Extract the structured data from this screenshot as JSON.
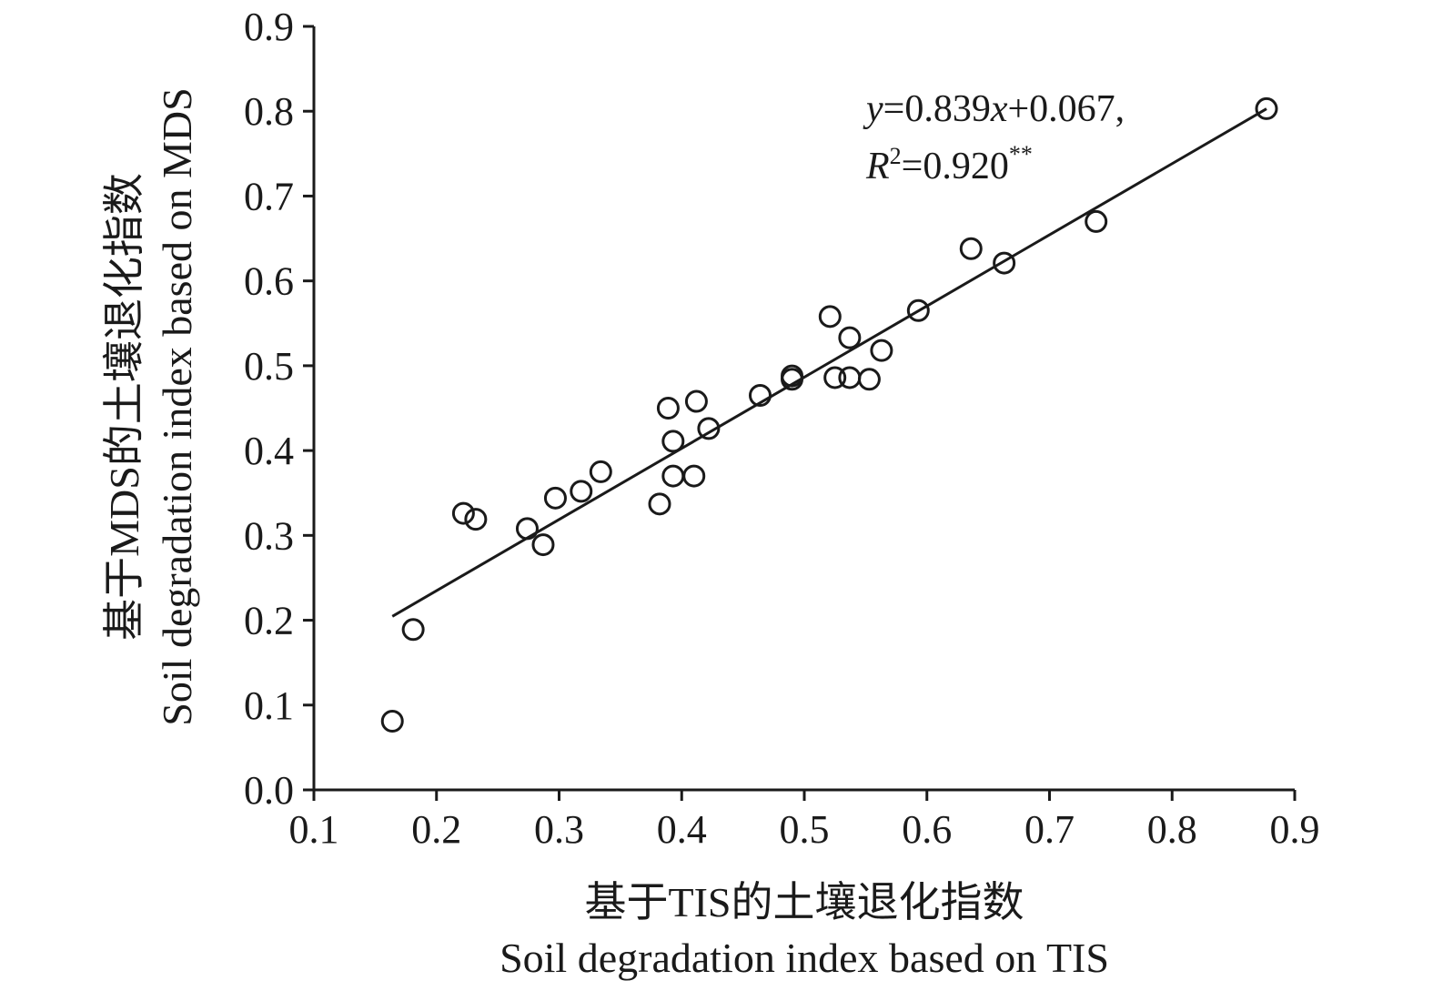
{
  "chart_data": {
    "type": "scatter",
    "title": "",
    "xlabel_cn": "基于TIS的土壤退化指数",
    "xlabel": "Soil degradation index based on TIS",
    "ylabel_cn": "基于MDS的土壤退化指数",
    "ylabel": "Soil degradation index based on MDS",
    "xlim": [
      0.1,
      0.9
    ],
    "ylim": [
      0.0,
      0.9
    ],
    "xticks": [
      "0.1",
      "0.2",
      "0.3",
      "0.4",
      "0.5",
      "0.6",
      "0.7",
      "0.8",
      "0.9"
    ],
    "yticks": [
      "0.0",
      "0.1",
      "0.2",
      "0.3",
      "0.4",
      "0.5",
      "0.6",
      "0.7",
      "0.8",
      "0.9"
    ],
    "grid": false,
    "legend": "none",
    "colors": {
      "ink": "#1a1a1a",
      "background": "#ffffff"
    },
    "points": [
      [
        0.164,
        0.081
      ],
      [
        0.181,
        0.189
      ],
      [
        0.222,
        0.326
      ],
      [
        0.232,
        0.319
      ],
      [
        0.274,
        0.308
      ],
      [
        0.287,
        0.289
      ],
      [
        0.297,
        0.344
      ],
      [
        0.318,
        0.352
      ],
      [
        0.334,
        0.375
      ],
      [
        0.382,
        0.337
      ],
      [
        0.389,
        0.45
      ],
      [
        0.393,
        0.411
      ],
      [
        0.393,
        0.37
      ],
      [
        0.41,
        0.37
      ],
      [
        0.412,
        0.458
      ],
      [
        0.422,
        0.426
      ],
      [
        0.464,
        0.465
      ],
      [
        0.49,
        0.484
      ],
      [
        0.49,
        0.488
      ],
      [
        0.521,
        0.558
      ],
      [
        0.525,
        0.486
      ],
      [
        0.537,
        0.486
      ],
      [
        0.537,
        0.533
      ],
      [
        0.553,
        0.484
      ],
      [
        0.563,
        0.518
      ],
      [
        0.593,
        0.565
      ],
      [
        0.636,
        0.638
      ],
      [
        0.663,
        0.621
      ],
      [
        0.738,
        0.67
      ],
      [
        0.877,
        0.803
      ]
    ],
    "fit": {
      "slope": 0.839,
      "intercept": 0.067,
      "x_range": [
        0.164,
        0.877
      ],
      "equation_y": "y",
      "equation_mid": "=0.839",
      "equation_x": "x",
      "equation_tail": "+0.067,",
      "r2_R": "R",
      "r2_sup": "2",
      "r2_value": "=0.920",
      "r2_stars": "**"
    }
  }
}
